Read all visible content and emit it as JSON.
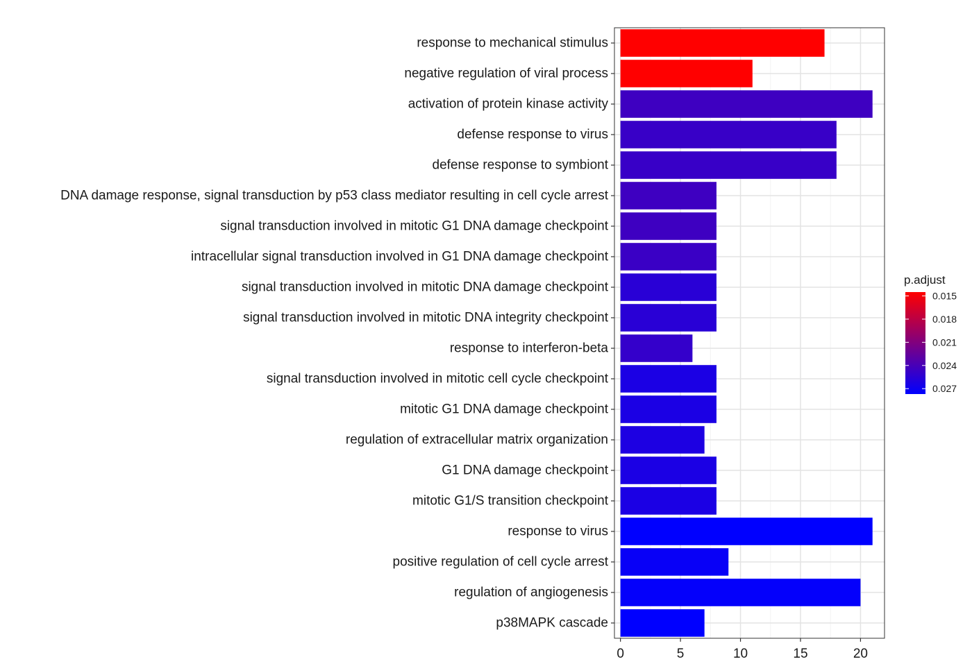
{
  "chart_data": {
    "type": "bar",
    "orientation": "horizontal",
    "categories": [
      "response to mechanical stimulus",
      "negative regulation of viral process",
      "activation of protein kinase activity",
      "defense response to virus",
      "defense response to symbiont",
      "DNA damage response, signal transduction by p53 class mediator resulting in cell cycle arrest",
      "signal transduction involved in mitotic G1 DNA damage checkpoint",
      "intracellular signal transduction involved in G1 DNA damage checkpoint",
      "signal transduction involved in mitotic DNA damage checkpoint",
      "signal transduction involved in mitotic DNA integrity checkpoint",
      "response to interferon-beta",
      "signal transduction involved in mitotic cell cycle checkpoint",
      "mitotic G1 DNA damage checkpoint",
      "regulation of extracellular matrix organization",
      "G1 DNA damage checkpoint",
      "mitotic G1/S transition checkpoint",
      "response to virus",
      "positive regulation of cell cycle arrest",
      "regulation of angiogenesis",
      "p38MAPK cascade"
    ],
    "values": [
      17,
      11,
      21,
      18,
      18,
      8,
      8,
      8,
      8,
      8,
      6,
      8,
      8,
      7,
      8,
      8,
      21,
      9,
      20,
      7
    ],
    "p_adjust": [
      0.0145,
      0.0145,
      0.0245,
      0.0248,
      0.0248,
      0.0245,
      0.0245,
      0.0247,
      0.0256,
      0.0256,
      0.025,
      0.0263,
      0.0263,
      0.0262,
      0.0263,
      0.0263,
      0.0277,
      0.0273,
      0.0275,
      0.0277
    ],
    "xlim": [
      -0.5,
      22
    ],
    "x_ticks": [
      0,
      5,
      10,
      15,
      20
    ],
    "grid": true,
    "color_scale": {
      "title": "p.adjust",
      "low_color": "#ff0000",
      "high_color": "#0000ff",
      "range": [
        0.0145,
        0.0277
      ],
      "ticks": [
        "0.015",
        "0.018",
        "0.021",
        "0.024",
        "0.027"
      ],
      "tick_values": [
        0.015,
        0.018,
        0.021,
        0.024,
        0.027
      ]
    },
    "legend_position": "right",
    "xlabel": "",
    "ylabel": "",
    "title": ""
  }
}
